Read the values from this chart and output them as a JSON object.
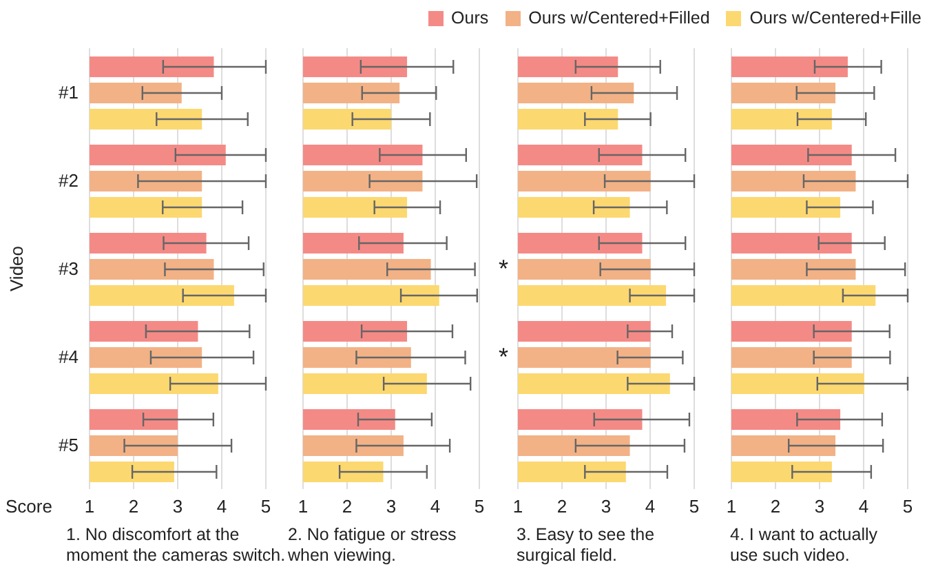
{
  "chart_data": [
    {
      "type": "bar",
      "orientation": "horizontal",
      "xlabel": "1. No discomfort at the moment the cameras switch.",
      "ylabel": "Video",
      "categories": [
        "#1",
        "#2",
        "#3",
        "#4",
        "#5"
      ],
      "xlim": [
        1,
        5
      ],
      "xticks": [
        1,
        2,
        3,
        4,
        5
      ],
      "grid": "x",
      "legend": "top right",
      "annotations": [
        "Score"
      ],
      "series": [
        {
          "name": "Ours",
          "color": "#f48a86",
          "values": [
            3.82,
            4.09,
            3.65,
            3.46,
            3.0
          ],
          "errors": [
            [
              2.67,
              5.0
            ],
            [
              2.95,
              5.0
            ],
            [
              2.68,
              4.61
            ],
            [
              2.28,
              4.63
            ],
            [
              2.22,
              3.81
            ]
          ]
        },
        {
          "name": "Ours w/Centered+Filled",
          "color": "#f2b286",
          "values": [
            3.09,
            3.55,
            3.82,
            3.55,
            3.0
          ],
          "errors": [
            [
              2.2,
              4.0
            ],
            [
              2.1,
              5.0
            ],
            [
              2.71,
              4.95
            ],
            [
              2.39,
              4.72
            ],
            [
              1.79,
              4.22
            ]
          ]
        },
        {
          "name": "Ours w/Centered+Fille",
          "color": "#fcd870",
          "values": [
            3.55,
            3.55,
            4.28,
            3.92,
            2.92
          ],
          "errors": [
            [
              2.52,
              4.59
            ],
            [
              2.66,
              4.47
            ],
            [
              3.12,
              5.0
            ],
            [
              2.83,
              5.0
            ],
            [
              1.97,
              3.88
            ]
          ]
        }
      ]
    },
    {
      "type": "bar",
      "orientation": "horizontal",
      "xlabel": "2. No fatigue or stress when viewing.",
      "xlim": [
        1,
        5
      ],
      "xticks": [
        1,
        2,
        3,
        4,
        5
      ],
      "grid": "x",
      "tick_labels": "x",
      "annotations": [
        "*",
        "*"
      ],
      "series": [
        {
          "color": "#f48a86",
          "values": [
            3.36,
            3.71,
            3.28,
            3.36,
            3.09
          ],
          "errors": [
            [
              2.31,
              4.41
            ],
            [
              2.74,
              4.7
            ],
            [
              2.27,
              4.26
            ],
            [
              2.33,
              4.39
            ],
            [
              2.25,
              3.92
            ]
          ]
        },
        {
          "color": "#f2b286",
          "values": [
            3.19,
            3.71,
            3.9,
            3.45,
            3.28
          ],
          "errors": [
            [
              2.34,
              4.02
            ],
            [
              2.51,
              4.94
            ],
            [
              2.91,
              4.9
            ],
            [
              2.21,
              4.68
            ],
            [
              2.21,
              4.33
            ]
          ]
        },
        {
          "color": "#fcd870",
          "values": [
            3.0,
            3.36,
            4.09,
            3.81,
            2.82
          ],
          "errors": [
            [
              2.12,
              3.88
            ],
            [
              2.62,
              4.11
            ],
            [
              3.22,
              4.95
            ],
            [
              2.83,
              4.8
            ],
            [
              1.83,
              3.81
            ]
          ]
        }
      ]
    },
    {
      "type": "bar",
      "orientation": "horizontal",
      "xlabel": "3. Easy to see the surgical field.",
      "xlim": [
        1,
        5
      ],
      "xticks": [
        1,
        2,
        3,
        4,
        5
      ],
      "grid": "x",
      "tick_labels": "x",
      "series": [
        {
          "color": "#f48a86",
          "values": [
            3.27,
            3.82,
            3.82,
            4.01,
            3.82
          ],
          "errors": [
            [
              2.31,
              4.23
            ],
            [
              2.84,
              4.8
            ],
            [
              2.84,
              4.8
            ],
            [
              3.49,
              4.5
            ],
            [
              2.73,
              4.89
            ]
          ]
        },
        {
          "color": "#f2b286",
          "values": [
            3.63,
            4.01,
            4.01,
            4.01,
            3.54
          ],
          "errors": [
            [
              2.67,
              4.61
            ],
            [
              2.97,
              5.0
            ],
            [
              2.87,
              5.0
            ],
            [
              3.26,
              4.74
            ],
            [
              2.31,
              4.78
            ]
          ]
        },
        {
          "color": "#fcd870",
          "values": [
            3.27,
            3.54,
            4.36,
            4.45,
            3.45
          ],
          "errors": [
            [
              2.52,
              4.01
            ],
            [
              2.72,
              4.38
            ],
            [
              3.54,
              5.0
            ],
            [
              3.49,
              5.0
            ],
            [
              2.52,
              4.39
            ]
          ]
        }
      ]
    },
    {
      "type": "bar",
      "orientation": "horizontal",
      "xlabel": "4. I want to actually use such video.",
      "xlim": [
        1,
        5
      ],
      "xticks": [
        1,
        2,
        3,
        4,
        5
      ],
      "grid": "x",
      "tick_labels": "x",
      "series": [
        {
          "color": "#f48a86",
          "values": [
            3.64,
            3.73,
            3.73,
            3.73,
            3.47
          ],
          "errors": [
            [
              2.89,
              4.4
            ],
            [
              2.74,
              4.72
            ],
            [
              2.98,
              4.48
            ],
            [
              2.87,
              4.59
            ],
            [
              2.49,
              4.42
            ]
          ]
        },
        {
          "color": "#f2b286",
          "values": [
            3.36,
            3.82,
            3.82,
            3.73,
            3.36
          ],
          "errors": [
            [
              2.48,
              4.24
            ],
            [
              2.64,
              5.0
            ],
            [
              2.71,
              4.94
            ],
            [
              2.87,
              4.6
            ],
            [
              2.3,
              4.44
            ]
          ]
        },
        {
          "color": "#fcd870",
          "values": [
            3.28,
            3.47,
            4.27,
            4.01,
            3.28
          ],
          "errors": [
            [
              2.5,
              4.05
            ],
            [
              2.71,
              4.21
            ],
            [
              3.53,
              5.0
            ],
            [
              2.95,
              5.0
            ],
            [
              2.38,
              4.17
            ]
          ]
        }
      ]
    }
  ]
}
